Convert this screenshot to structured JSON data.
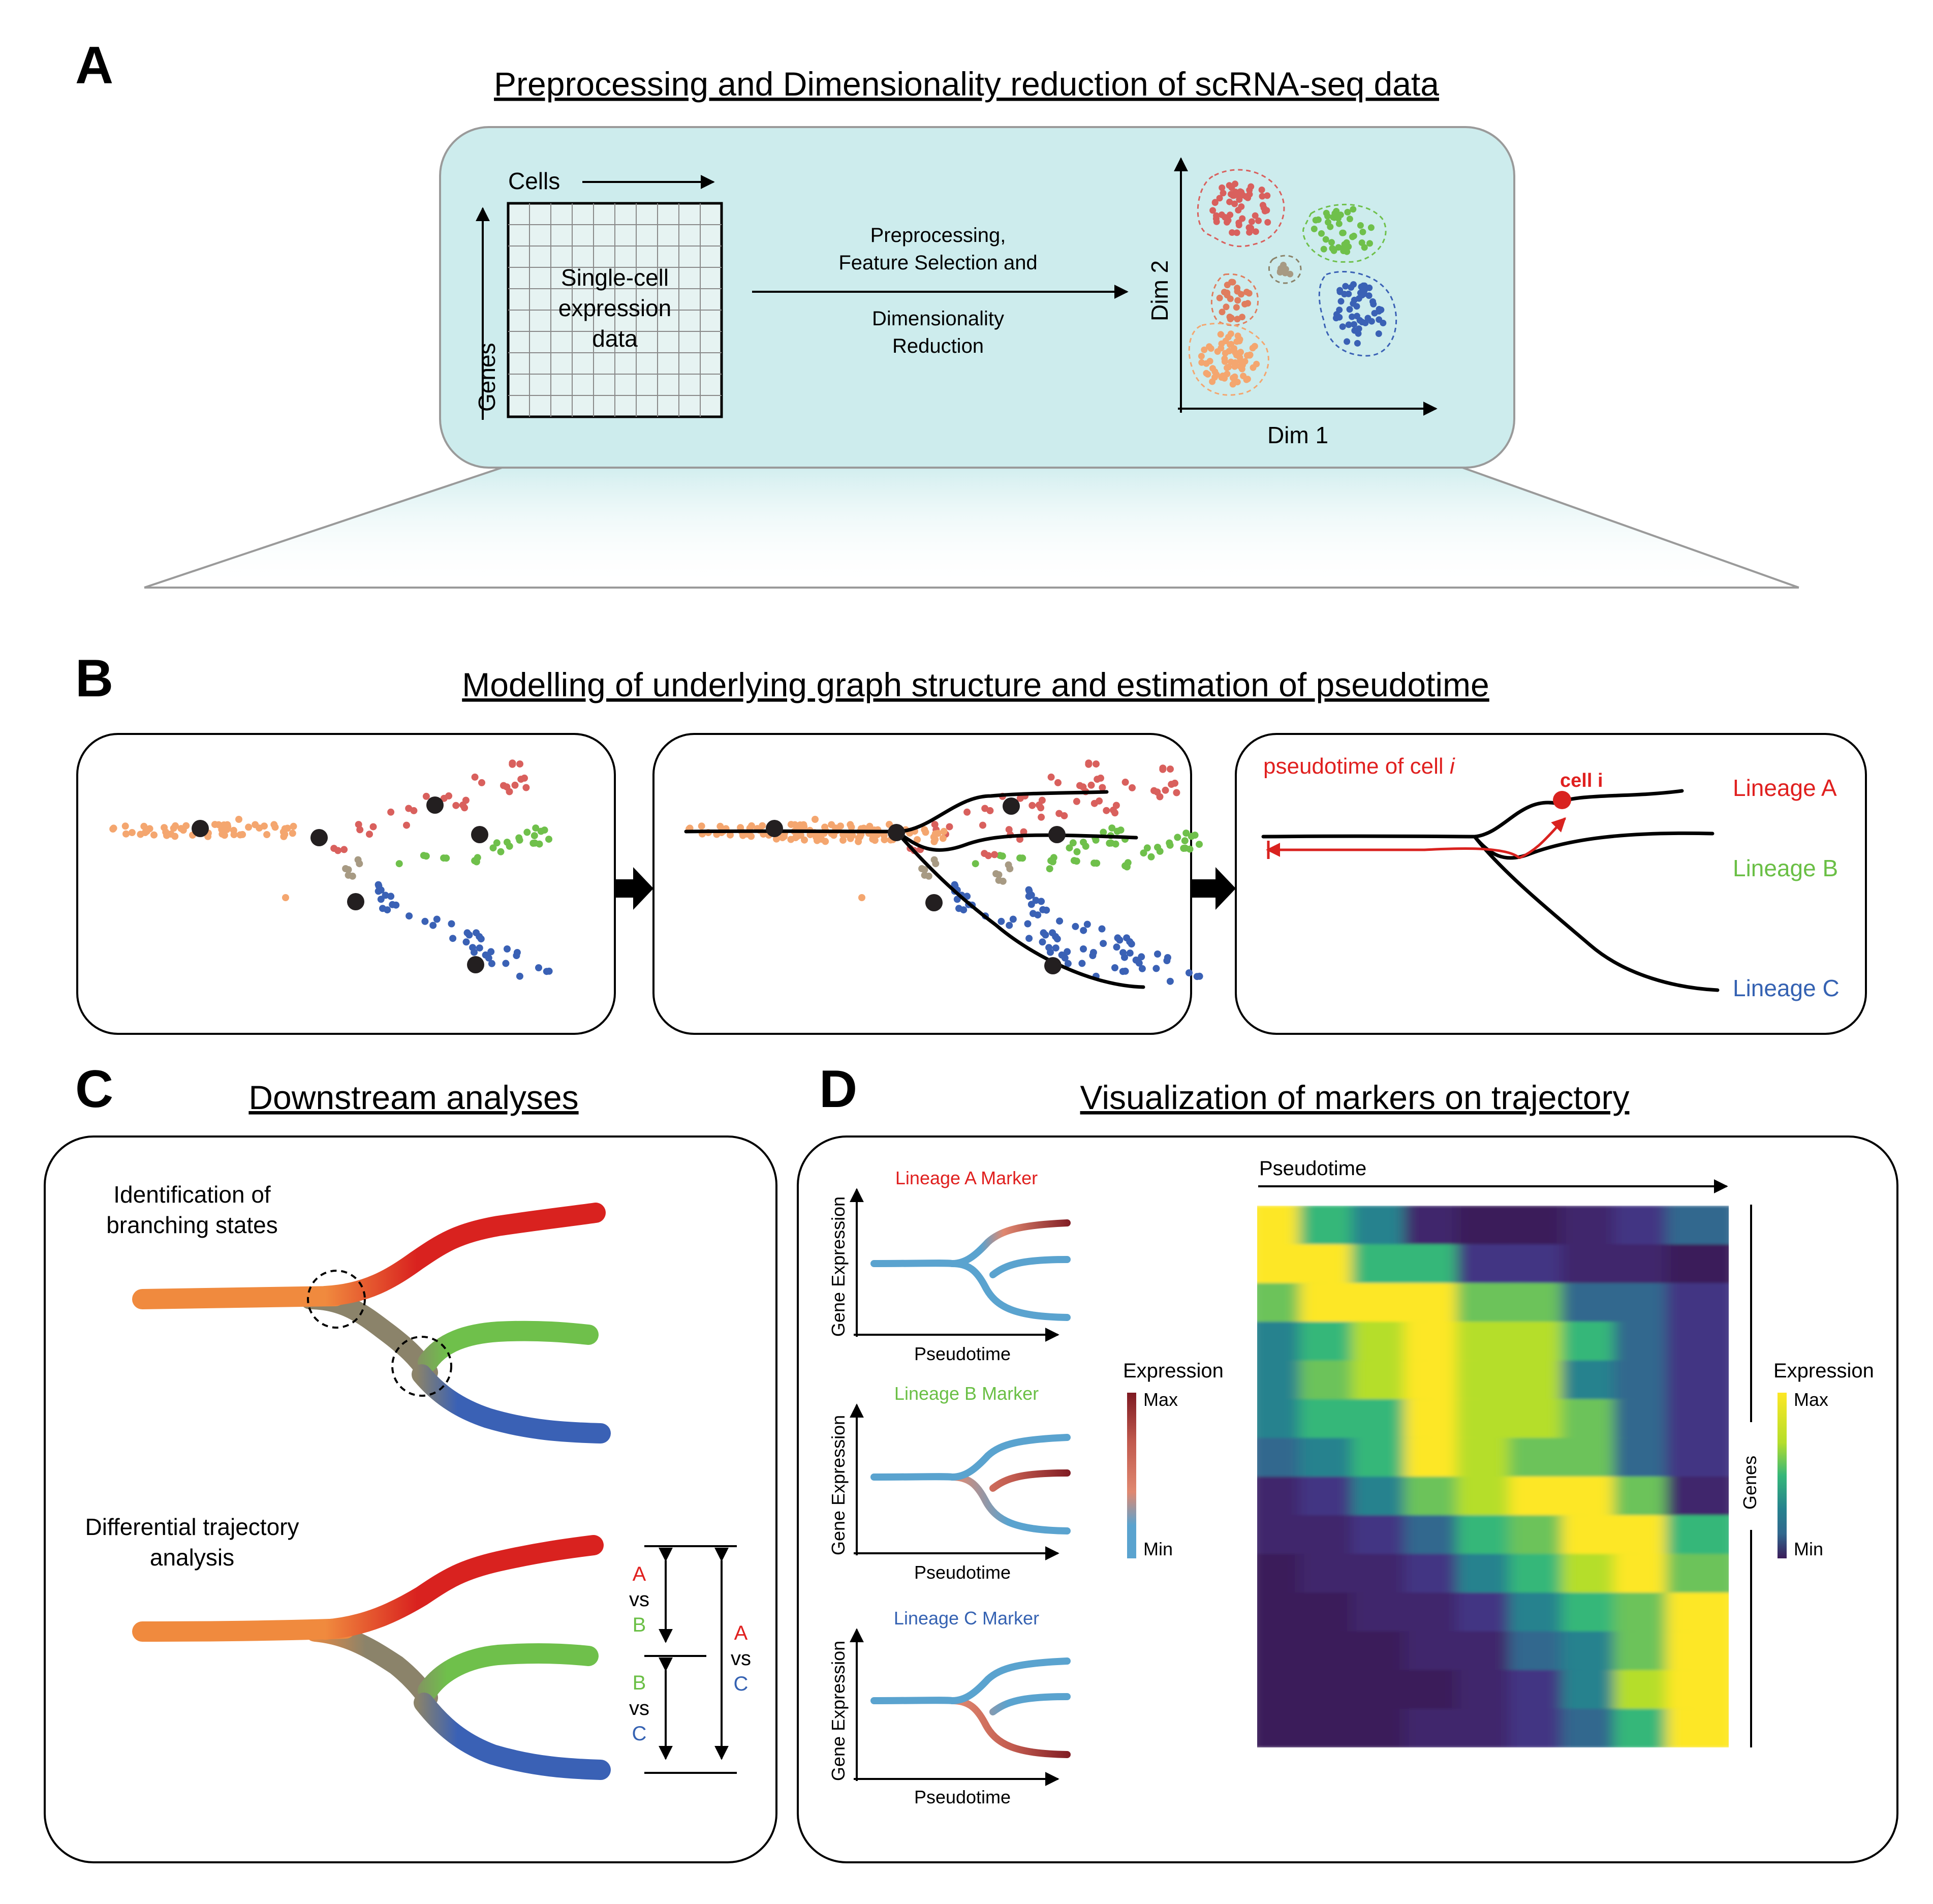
{
  "colors": {
    "orange": "#f08a3e",
    "peach": "#f4a66f",
    "red": "#d9221f",
    "red_text": "#e0201f",
    "pink_red": "#d9605d",
    "salmon": "#e07d5e",
    "olive": "#8b836a",
    "green": "#6fc04b",
    "green_text": "#6abf45",
    "blue": "#3a61b5",
    "blue_text": "#3562b2",
    "gray_brown": "#a79a83",
    "teal_box": "#cdeced",
    "light_blue_line": "#5aa3cf",
    "dark_red": "#7e1a22"
  },
  "panel_a": {
    "letter": "A",
    "title": "Preprocessing and Dimensionality reduction of scRNA-seq data",
    "cells_label": "Cells",
    "genes_label": "Genes",
    "matrix_text": [
      "Single-cell",
      "expression",
      "data"
    ],
    "arrow_text_top": [
      "Preprocessing,",
      "Feature Selection and"
    ],
    "arrow_text_bottom": [
      "Dimensionality",
      "Reduction"
    ],
    "dim1_label": "Dim 1",
    "dim2_label": "Dim 2"
  },
  "panel_b": {
    "letter": "B",
    "title": "Modelling of underlying graph structure and estimation of pseudotime",
    "pseudotime_label_prefix": "pseudotime of cell ",
    "pseudotime_label_italic": "i",
    "cell_label": "cell i",
    "lineages": [
      {
        "label": "Lineage A",
        "color": "#e0201f"
      },
      {
        "label": "Lineage B",
        "color": "#6abf45"
      },
      {
        "label": "Lineage C",
        "color": "#3562b2"
      }
    ]
  },
  "panel_c": {
    "letter": "C",
    "title": "Downstream analyses",
    "branching_label": [
      "Identification of",
      "branching states"
    ],
    "differential_label": [
      "Differential trajectory",
      "analysis"
    ],
    "comparisons": {
      "ab": {
        "first": "A",
        "vs": "vs",
        "second": "B"
      },
      "bc": {
        "first": "B",
        "vs": "vs",
        "second": "C"
      },
      "ac": {
        "first": "A",
        "vs": "vs",
        "second": "C"
      }
    }
  },
  "panel_d": {
    "letter": "D",
    "title": "Visualization of markers on trajectory",
    "markers": [
      {
        "label": "Lineage A Marker",
        "color": "#e0201f"
      },
      {
        "label": "Lineage B Marker",
        "color": "#6abf45"
      },
      {
        "label": "Lineage C Marker",
        "color": "#3562b2"
      }
    ],
    "y_axis_label": "Gene Expression",
    "x_axis_label": "Pseudotime",
    "legend_left": {
      "title": "Expression",
      "max": "Max",
      "min": "Min"
    },
    "heatmap_x_label": "Pseudotime",
    "heatmap_y_label": "Genes",
    "legend_right": {
      "title": "Expression",
      "max": "Max",
      "min": "Min"
    }
  }
}
